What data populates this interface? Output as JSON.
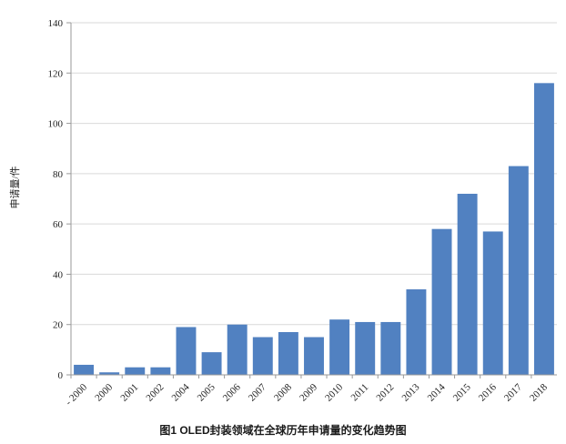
{
  "chart_data": {
    "type": "bar",
    "title": "",
    "xlabel": "",
    "ylabel": "申请量/件",
    "ylim": [
      0,
      140
    ],
    "yticks": [
      0,
      20,
      40,
      60,
      80,
      100,
      120,
      140
    ],
    "grid": true,
    "legend": "none",
    "categories": [
      "- 2000",
      "2000",
      "2001",
      "2002",
      "2004",
      "2005",
      "2006",
      "2007",
      "2008",
      "2009",
      "2010",
      "2011",
      "2012",
      "2013",
      "2014",
      "2015",
      "2016",
      "2017",
      "2018"
    ],
    "values": [
      4,
      1,
      3,
      3,
      19,
      9,
      20,
      15,
      17,
      15,
      22,
      21,
      21,
      34,
      58,
      72,
      57,
      83,
      116
    ],
    "bar_color": "#5181c1",
    "grid_color": "#d9d9d9"
  },
  "caption": "图1  OLED封装领域在全球历年申请量的变化趋势图"
}
